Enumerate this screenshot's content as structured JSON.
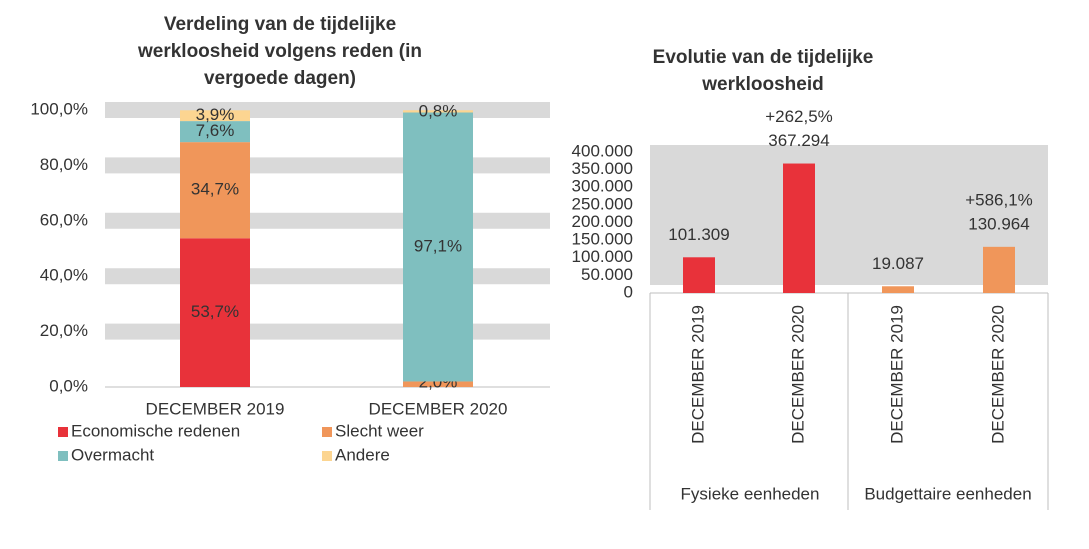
{
  "chart_data": [
    {
      "type": "stacked_bar",
      "title": [
        "Verdeling van de tijdelijke",
        "werkloosheid volgens reden (in",
        "vergoede dagen)"
      ],
      "categories": [
        "DECEMBER 2019",
        "DECEMBER 2020"
      ],
      "series": [
        {
          "name": "Economische redenen",
          "color": "#e8323a",
          "values": [
            53.7,
            0
          ],
          "value_labels": [
            "53,7%",
            null
          ],
          "label_color": "#ffffff"
        },
        {
          "name": "Slecht weer",
          "color": "#f0965a",
          "values": [
            34.7,
            2.0
          ],
          "value_labels": [
            "34,7%",
            "2,0%"
          ],
          "label_color": "#333333"
        },
        {
          "name": "Overmacht",
          "color": "#7fbfbf",
          "values": [
            7.6,
            97.1
          ],
          "value_labels": [
            "7,6%",
            "97,1%"
          ],
          "label_color": "#333333"
        },
        {
          "name": "Andere",
          "color": "#fcd591",
          "values": [
            3.9,
            0.8
          ],
          "value_labels": [
            "3,9%",
            "0,8%"
          ],
          "label_color": "#333333"
        }
      ],
      "ylim": [
        0,
        100
      ],
      "yticks": [
        {
          "value": 0,
          "label": "0,0%"
        },
        {
          "value": 20,
          "label": "20,0%"
        },
        {
          "value": 40,
          "label": "40,0%"
        },
        {
          "value": 60,
          "label": "60,0%"
        },
        {
          "value": 80,
          "label": "80,0%"
        },
        {
          "value": 100,
          "label": "100,0%"
        }
      ],
      "grid": true
    },
    {
      "type": "bar",
      "title": [
        "Evolutie van de tijdelijke",
        "werkloosheid"
      ],
      "categories": [
        "DECEMBER 2019",
        "DECEMBER 2020",
        "DECEMBER 2019",
        "DECEMBER 2020"
      ],
      "groups": [
        "Fysieke eenheden",
        "Budgettaire eenheden"
      ],
      "values": [
        101309,
        367294,
        19087,
        130964
      ],
      "value_labels": [
        "101.309",
        "367.294",
        "19.087",
        "130.964"
      ],
      "change_labels": [
        null,
        "+262,5%",
        null,
        "+586,1%"
      ],
      "colors": [
        "#e8323a",
        "#e8323a",
        "#f0965a",
        "#f0965a"
      ],
      "ylim": [
        0,
        400000
      ],
      "yticks": [
        {
          "value": 0,
          "label": "0"
        },
        {
          "value": 50000,
          "label": "50.000"
        },
        {
          "value": 100000,
          "label": "100.000"
        },
        {
          "value": 150000,
          "label": "150.000"
        },
        {
          "value": 200000,
          "label": "200.000"
        },
        {
          "value": 250000,
          "label": "250.000"
        },
        {
          "value": 300000,
          "label": "300.000"
        },
        {
          "value": 350000,
          "label": "350.000"
        },
        {
          "value": 400000,
          "label": "400.000"
        }
      ]
    }
  ]
}
